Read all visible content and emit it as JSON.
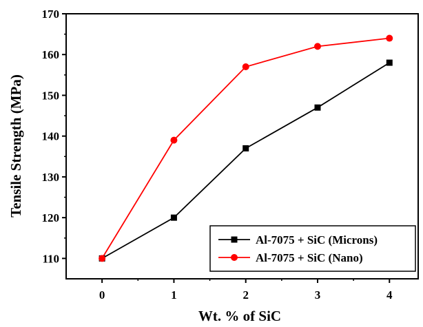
{
  "chart_data": {
    "type": "line",
    "title": "",
    "xlabel": "Wt. % of SiC",
    "ylabel": "Tensile Strength (MPa)",
    "x": [
      0,
      1,
      2,
      3,
      4
    ],
    "x_ticks": [
      "0",
      "1",
      "2",
      "3",
      "4"
    ],
    "xlim": [
      -0.5,
      4.4
    ],
    "ylim": [
      105,
      170
    ],
    "y_ticks": [
      "110",
      "120",
      "130",
      "140",
      "150",
      "160",
      "170"
    ],
    "grid": false,
    "legend_position": "bottom-right",
    "series": [
      {
        "name": "Al-7075 + SiC (Microns)",
        "values": [
          110,
          120,
          137,
          147,
          158
        ],
        "color": "#000000",
        "marker": "square"
      },
      {
        "name": "Al-7075 + SiC (Nano)",
        "values": [
          110,
          139,
          157,
          162,
          164
        ],
        "color": "#ff0000",
        "marker": "circle"
      }
    ]
  }
}
